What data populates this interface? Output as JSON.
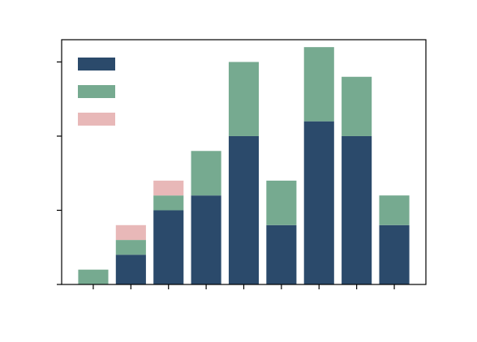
{
  "chart_data": {
    "type": "stacked-bar",
    "categories": [
      null,
      null,
      null,
      null,
      null,
      null,
      null,
      null,
      null
    ],
    "series": [
      {
        "color": "#2b4a6b",
        "values": [
          0,
          2,
          5,
          6,
          10,
          4,
          11,
          10,
          4
        ]
      },
      {
        "color": "#76aa90",
        "values": [
          1,
          1,
          1,
          3,
          5,
          3,
          5,
          4,
          2
        ]
      },
      {
        "color": "#e8b8b8",
        "values": [
          null,
          1,
          1,
          null,
          null,
          null,
          null,
          null,
          null
        ]
      }
    ],
    "ylim": [
      0,
      16.5
    ],
    "yticks": [
      0,
      5,
      10,
      15
    ],
    "legend": "upper left"
  }
}
